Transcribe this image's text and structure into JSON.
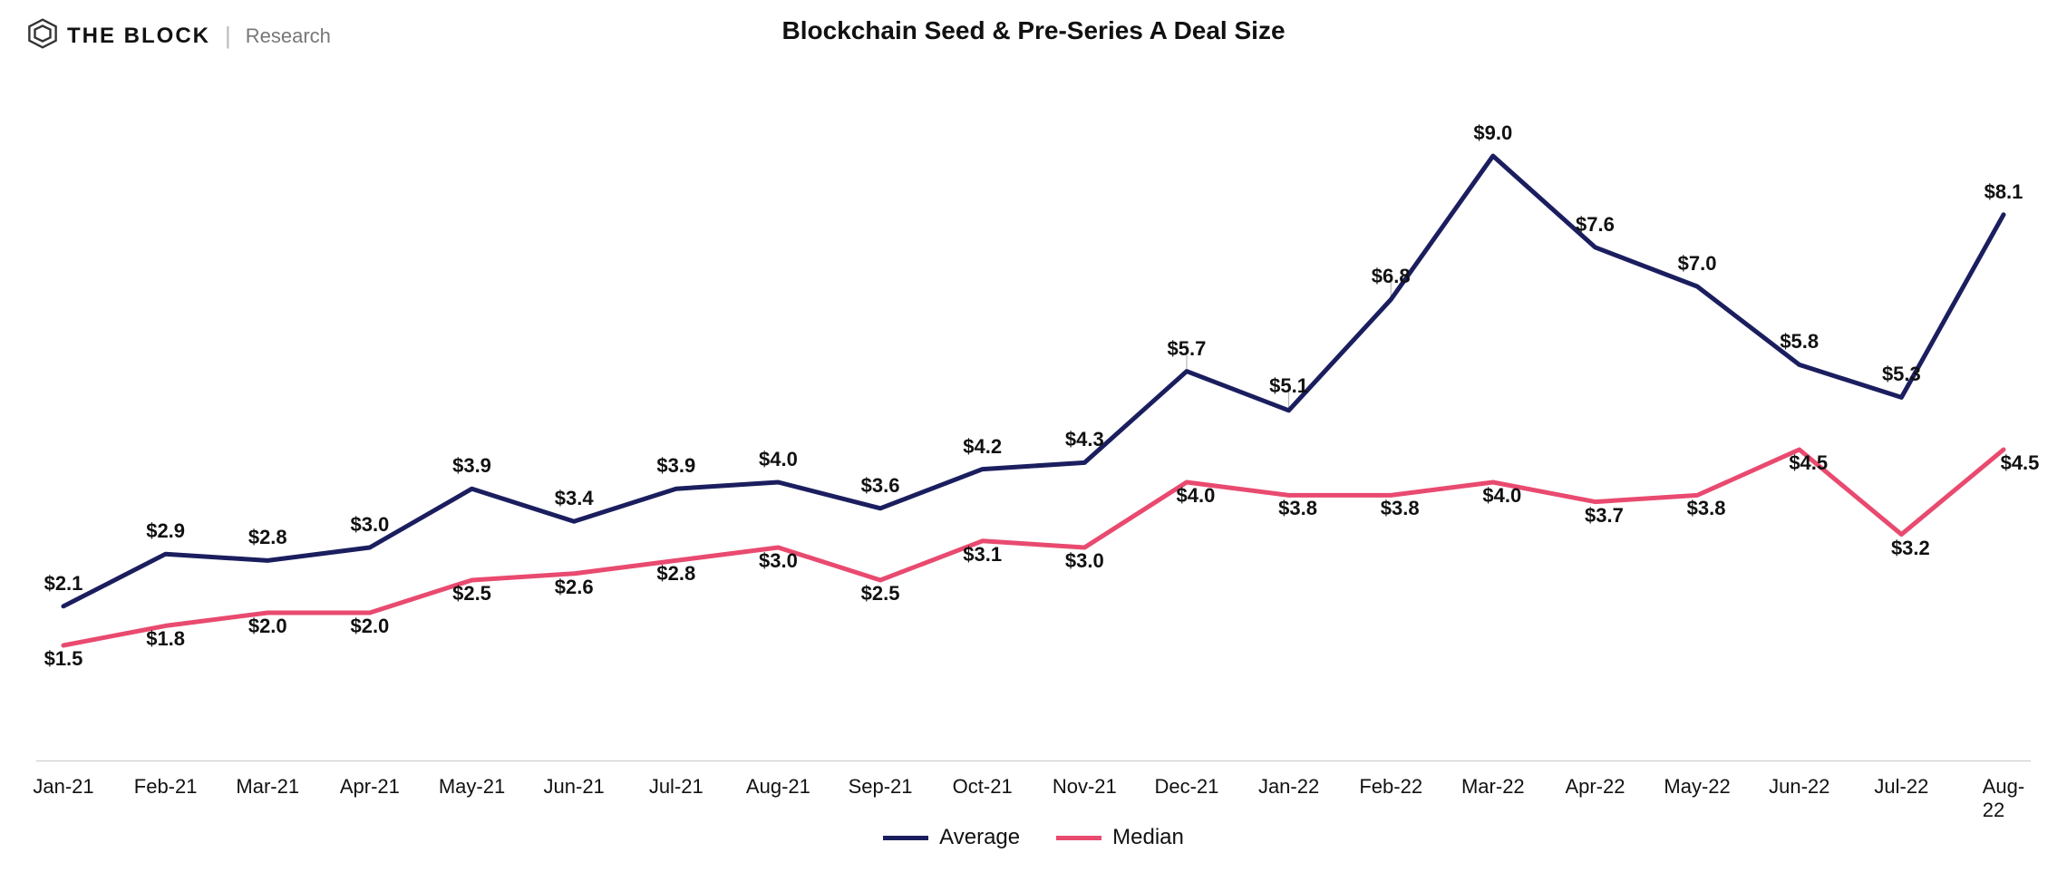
{
  "brand": {
    "main": "THE BLOCK",
    "sub": "Research",
    "logo_color": "#333333"
  },
  "chart": {
    "type": "line",
    "title": "Blockchain Seed & Pre-Series A Deal Size",
    "title_fontsize": 28,
    "background_color": "#ffffff",
    "axis_color": "#c8c8c8",
    "text_color": "#111111",
    "label_fontsize": 22,
    "data_label_fontsize": 22,
    "line_width": 5,
    "ylim": [
      0,
      10
    ],
    "categories": [
      "Jan-21",
      "Feb-21",
      "Mar-21",
      "Apr-21",
      "May-21",
      "Jun-21",
      "Jul-21",
      "Aug-21",
      "Sep-21",
      "Oct-21",
      "Nov-21",
      "Dec-21",
      "Jan-22",
      "Feb-22",
      "Mar-22",
      "Apr-22",
      "May-22",
      "Jun-22",
      "Jul-22",
      "Aug-22"
    ],
    "series": [
      {
        "name": "Average",
        "color": "#1b1e5e",
        "values": [
          2.1,
          2.9,
          2.8,
          3.0,
          3.9,
          3.4,
          3.9,
          4.0,
          3.6,
          4.2,
          4.3,
          5.7,
          5.1,
          6.8,
          9.0,
          7.6,
          7.0,
          5.8,
          5.3,
          8.1
        ],
        "labels": [
          "$2.1",
          "$2.9",
          "$2.8",
          "$3.0",
          "$3.9",
          "$3.4",
          "$3.9",
          "$4.0",
          "$3.6",
          "$4.2",
          "$4.3",
          "$5.7",
          "$5.1",
          "$6.8",
          "$9.0",
          "$7.6",
          "$7.0",
          "$5.8",
          "$5.3",
          "$8.1"
        ],
        "label_dy": [
          -12,
          -12,
          -12,
          -12,
          -12,
          -12,
          -12,
          -12,
          -12,
          -12,
          -12,
          -12,
          -14,
          -12,
          -12,
          -12,
          -12,
          -12,
          -12,
          -12
        ],
        "label_dx": [
          0,
          0,
          0,
          0,
          0,
          0,
          0,
          0,
          0,
          0,
          0,
          0,
          0,
          0,
          0,
          0,
          0,
          0,
          0,
          0
        ]
      },
      {
        "name": "Median",
        "color": "#e94a6f",
        "values": [
          1.5,
          1.8,
          2.0,
          2.0,
          2.5,
          2.6,
          2.8,
          3.0,
          2.5,
          3.1,
          3.0,
          4.0,
          3.8,
          3.8,
          4.0,
          3.7,
          3.8,
          4.5,
          3.2,
          4.5
        ],
        "labels": [
          "$1.5",
          "$1.8",
          "$2.0",
          "$2.0",
          "$2.5",
          "$2.6",
          "$2.8",
          "$3.0",
          "$2.5",
          "$3.1",
          "$3.0",
          "$4.0",
          "$3.8",
          "$3.8",
          "$4.0",
          "$3.7",
          "$3.8",
          "$4.5",
          "$3.2",
          "$4.5"
        ],
        "label_dy": [
          28,
          28,
          28,
          28,
          28,
          28,
          28,
          28,
          28,
          28,
          28,
          28,
          28,
          28,
          28,
          28,
          28,
          28,
          28,
          28
        ],
        "label_dx": [
          0,
          0,
          0,
          0,
          0,
          0,
          0,
          0,
          0,
          0,
          0,
          10,
          10,
          10,
          10,
          10,
          10,
          10,
          10,
          18
        ]
      }
    ],
    "legend_position": "bottom",
    "value_tick_lines": [
      [
        11,
        0,
        -30
      ],
      [
        12,
        0,
        -30
      ],
      [
        13,
        0,
        -30
      ]
    ]
  }
}
